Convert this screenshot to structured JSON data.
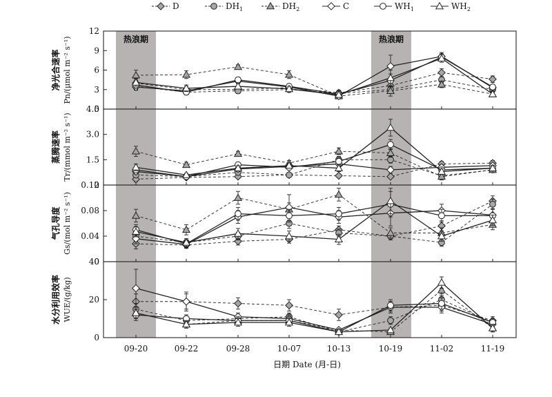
{
  "chart_data": {
    "type": "line",
    "x_categories": [
      "09-20",
      "09-22",
      "09-28",
      "10-07",
      "10-13",
      "10-19",
      "11-02",
      "11-19"
    ],
    "x_label": "日期 Date (月-日)",
    "heat_wave_label": "热浪期",
    "heat_wave_periods": [
      [
        "09-20",
        "09-20"
      ],
      [
        "10-19",
        "10-19"
      ]
    ],
    "legend": [
      {
        "key": "D",
        "text": "D",
        "sub": "",
        "marker": "diamond",
        "fill": "#a6a6a6",
        "dashed": true
      },
      {
        "key": "DH1",
        "text": "DH",
        "sub": "1",
        "marker": "circle",
        "fill": "#a6a6a6",
        "dashed": true
      },
      {
        "key": "DH2",
        "text": "DH",
        "sub": "2",
        "marker": "triangle",
        "fill": "#a6a6a6",
        "dashed": true
      },
      {
        "key": "C",
        "text": "C",
        "sub": "",
        "marker": "diamond",
        "fill": "#ffffff",
        "dashed": false
      },
      {
        "key": "WH1",
        "text": "WH",
        "sub": "1",
        "marker": "circle",
        "fill": "#ffffff",
        "dashed": false
      },
      {
        "key": "WH2",
        "text": "WH",
        "sub": "2",
        "marker": "triangle",
        "fill": "#ffffff",
        "dashed": false
      }
    ],
    "panels": [
      {
        "id": "pn",
        "ylabel_cn": "净光合速率",
        "ylabel_unit": "Pn/(μmol m⁻² s⁻¹)",
        "ylim": [
          0,
          12
        ],
        "yticks": [
          0,
          3,
          6,
          9,
          12
        ],
        "show_heat_label": true,
        "series": {
          "D": {
            "values": [
              4.0,
              3.0,
              3.0,
              3.3,
              2.5,
              3.6,
              5.6,
              4.6
            ],
            "err": [
              0.6,
              0.5,
              0.4,
              0.4,
              0.4,
              0.5,
              0.6,
              0.5
            ]
          },
          "DH1": {
            "values": [
              3.5,
              2.6,
              2.8,
              3.0,
              2.4,
              3.0,
              4.5,
              3.0
            ],
            "err": [
              0.5,
              0.4,
              0.4,
              0.4,
              0.4,
              0.5,
              0.5,
              0.4
            ]
          },
          "DH2": {
            "values": [
              5.2,
              5.3,
              6.5,
              5.3,
              2.0,
              2.8,
              3.8,
              2.3
            ],
            "err": [
              0.8,
              0.6,
              0.3,
              0.6,
              0.4,
              0.8,
              0.5,
              0.4
            ]
          },
          "C": {
            "values": [
              3.4,
              2.8,
              4.3,
              3.4,
              2.0,
              6.6,
              8.1,
              3.3
            ],
            "err": [
              0.5,
              0.5,
              0.4,
              0.4,
              0.3,
              1.7,
              0.6,
              0.4
            ]
          },
          "WH1": {
            "values": [
              3.7,
              2.6,
              4.5,
              3.5,
              2.3,
              4.4,
              8.0,
              3.4
            ],
            "err": [
              0.5,
              0.4,
              0.4,
              0.4,
              0.3,
              1.0,
              0.5,
              0.4
            ]
          },
          "WH2": {
            "values": [
              4.1,
              3.2,
              3.5,
              3.1,
              2.2,
              4.8,
              7.8,
              2.3
            ],
            "err": [
              0.6,
              0.5,
              0.4,
              0.4,
              0.3,
              1.2,
              0.6,
              0.4
            ]
          }
        }
      },
      {
        "id": "tr",
        "ylabel_cn": "蒸腾速率",
        "ylabel_unit": "Tr/(mmol m⁻² s⁻¹)",
        "ylim": [
          0,
          4.5
        ],
        "yticks": [
          0,
          1.5,
          3.0,
          4.5
        ],
        "show_heat_label": false,
        "series": {
          "D": {
            "values": [
              0.35,
              0.45,
              0.5,
              0.6,
              0.55,
              0.5,
              1.25,
              1.3
            ],
            "err": [
              0.15,
              0.1,
              0.1,
              0.1,
              0.1,
              0.1,
              0.15,
              0.15
            ]
          },
          "DH1": {
            "values": [
              0.6,
              0.5,
              0.75,
              0.6,
              1.5,
              1.5,
              0.55,
              0.9
            ],
            "err": [
              0.15,
              0.1,
              0.15,
              0.1,
              0.2,
              0.2,
              0.15,
              0.15
            ]
          },
          "DH2": {
            "values": [
              2.0,
              1.2,
              1.85,
              1.3,
              2.0,
              1.9,
              0.5,
              0.9
            ],
            "err": [
              0.3,
              0.15,
              0.15,
              0.15,
              0.2,
              0.25,
              0.2,
              0.15
            ]
          },
          "C": {
            "values": [
              0.8,
              0.5,
              0.95,
              1.1,
              1.25,
              0.9,
              1.05,
              1.15
            ],
            "err": [
              0.15,
              0.1,
              0.15,
              0.15,
              0.2,
              0.2,
              0.15,
              0.15
            ]
          },
          "WH1": {
            "values": [
              0.9,
              0.5,
              1.2,
              1.05,
              1.4,
              2.4,
              0.9,
              1.0
            ],
            "err": [
              0.15,
              0.1,
              0.15,
              0.15,
              0.2,
              0.3,
              0.15,
              0.15
            ]
          },
          "WH2": {
            "values": [
              1.05,
              0.6,
              1.0,
              1.15,
              1.0,
              3.4,
              0.8,
              1.0
            ],
            "err": [
              0.2,
              0.1,
              0.15,
              0.15,
              0.2,
              0.5,
              0.15,
              0.15
            ]
          }
        }
      },
      {
        "id": "gs",
        "ylabel_cn": "气孔导度",
        "ylabel_unit": "Gs/(mol m⁻² s⁻¹)",
        "ylim": [
          0,
          0.12
        ],
        "yticks": [
          0,
          0.04,
          0.08,
          0.12
        ],
        "show_heat_label": false,
        "series": {
          "D": {
            "values": [
              0.028,
              0.026,
              0.032,
              0.035,
              0.05,
              0.04,
              0.056,
              0.095
            ],
            "err": [
              0.008,
              0.005,
              0.006,
              0.006,
              0.006,
              0.006,
              0.008,
              0.008
            ]
          },
          "DH1": {
            "values": [
              0.04,
              0.03,
              0.04,
              0.06,
              0.045,
              0.04,
              0.03,
              0.09
            ],
            "err": [
              0.008,
              0.006,
              0.006,
              0.008,
              0.006,
              0.006,
              0.006,
              0.008
            ]
          },
          "DH2": {
            "values": [
              0.072,
              0.05,
              0.1,
              0.082,
              0.105,
              0.045,
              0.045,
              0.058
            ],
            "err": [
              0.01,
              0.008,
              0.01,
              0.01,
              0.01,
              0.008,
              0.008,
              0.008
            ]
          },
          "C": {
            "values": [
              0.036,
              0.027,
              0.07,
              0.085,
              0.07,
              0.076,
              0.08,
              0.073
            ],
            "err": [
              0.008,
              0.006,
              0.01,
              0.02,
              0.01,
              0.02,
              0.01,
              0.01
            ]
          },
          "WH1": {
            "values": [
              0.05,
              0.028,
              0.075,
              0.072,
              0.075,
              0.09,
              0.072,
              0.072
            ],
            "err": [
              0.008,
              0.006,
              0.01,
              0.01,
              0.01,
              0.02,
              0.01,
              0.01
            ]
          },
          "WH2": {
            "values": [
              0.047,
              0.03,
              0.044,
              0.04,
              0.035,
              0.095,
              0.04,
              0.065
            ],
            "err": [
              0.008,
              0.006,
              0.008,
              0.008,
              0.008,
              0.02,
              0.008,
              0.008
            ]
          }
        }
      },
      {
        "id": "wue",
        "ylabel_cn": "水分利用效率",
        "ylabel_unit": "WUE/(g/kg)",
        "ylim": [
          0,
          40
        ],
        "yticks": [
          0,
          20,
          40
        ],
        "show_heat_label": false,
        "series": {
          "D": {
            "values": [
              19,
              19,
              18,
              17,
              12,
              16,
              17,
              9
            ],
            "err": [
              4,
              4,
              3,
              3,
              3,
              3,
              3,
              2
            ]
          },
          "DH1": {
            "values": [
              15,
              9,
              10,
              11,
              3,
              9,
              20,
              8
            ],
            "err": [
              3,
              2,
              2,
              2,
              1,
              2,
              3,
              2
            ]
          },
          "DH2": {
            "values": [
              13,
              7,
              9,
              9,
              4,
              3,
              25,
              5
            ],
            "err": [
              3,
              2,
              2,
              2,
              1,
              1,
              3,
              2
            ]
          },
          "C": {
            "values": [
              26,
              19,
              11,
              10,
              4,
              16,
              16,
              7
            ],
            "err": [
              10,
              5,
              2,
              2,
              1,
              3,
              3,
              2
            ]
          },
          "WH1": {
            "values": [
              12,
              10,
              9,
              9,
              3,
              17,
              18,
              8
            ],
            "err": [
              3,
              2,
              2,
              2,
              1,
              3,
              3,
              2
            ]
          },
          "WH2": {
            "values": [
              13,
              7,
              8,
              8,
              3,
              4,
              29,
              5
            ],
            "err": [
              3,
              2,
              2,
              2,
              1,
              1,
              3,
              2
            ]
          }
        }
      }
    ]
  }
}
